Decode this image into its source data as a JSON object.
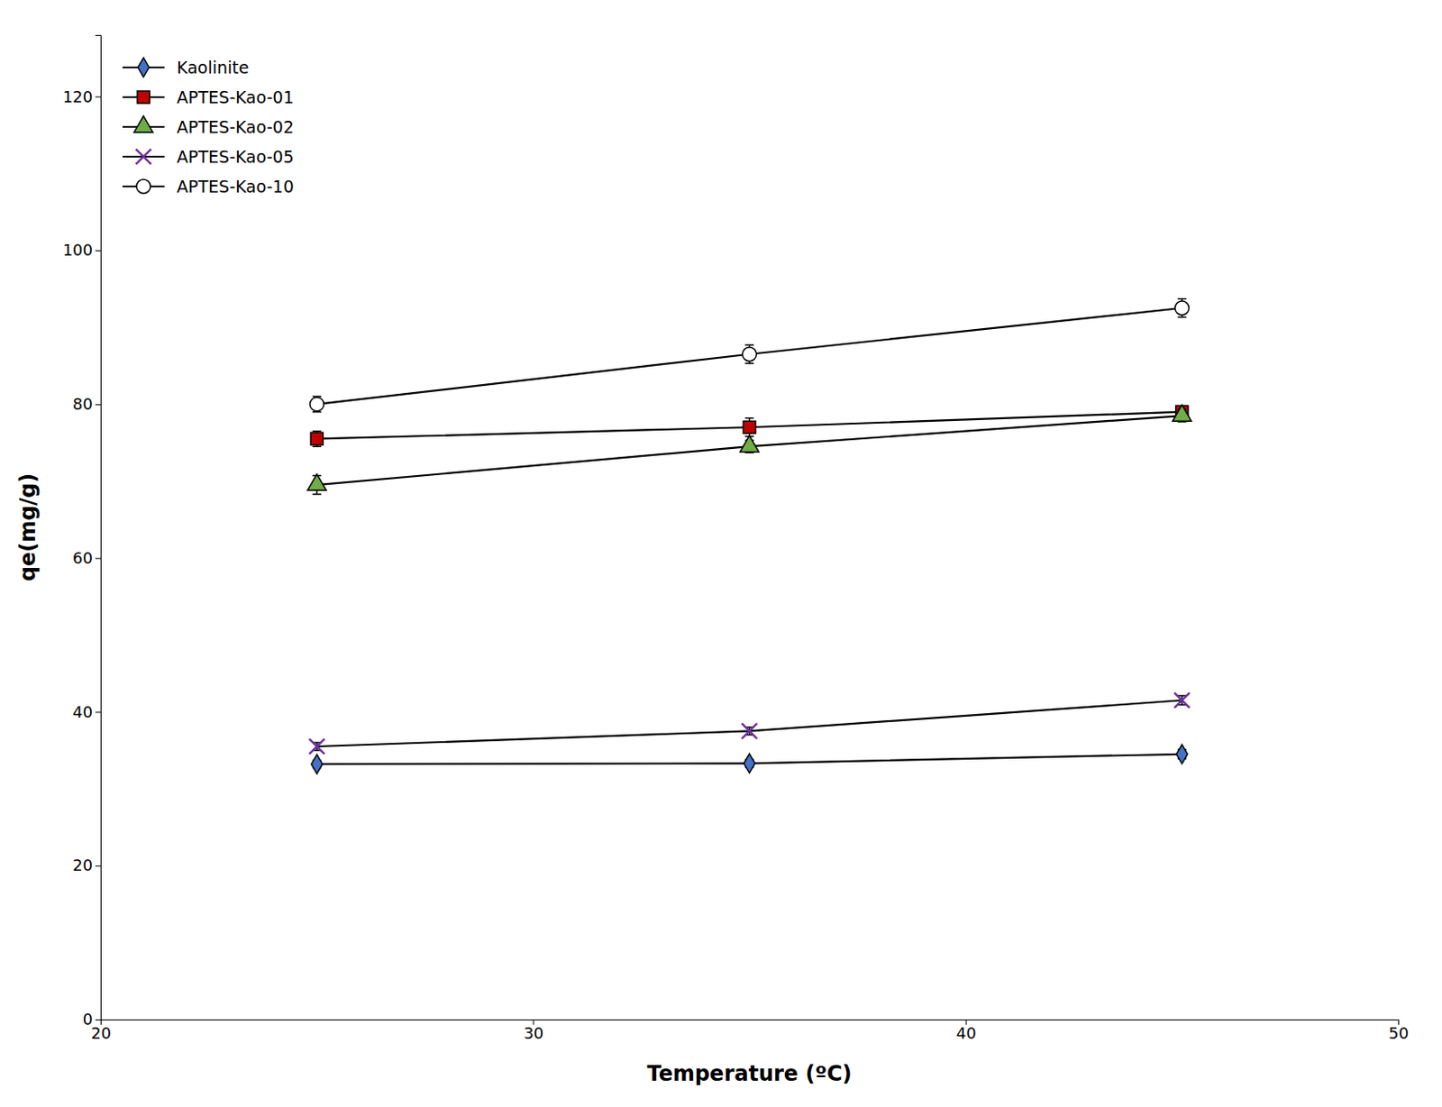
{
  "chart_data": {
    "type": "line",
    "xlabel": "Temperature (ºC)",
    "ylabel": "qe(mg/g)",
    "x": [
      25,
      35,
      45
    ],
    "series": [
      {
        "name": "Kaolinite",
        "color": "#4472C4",
        "marker": "diamond",
        "values": [
          33.2,
          33.3,
          34.5
        ],
        "errors": [
          0.5,
          0.5,
          0.6
        ]
      },
      {
        "name": "APTES-Kao-01",
        "color": "#C00000",
        "marker": "square",
        "values": [
          75.5,
          77.0,
          79.0
        ],
        "errors": [
          1.0,
          1.2,
          0.8
        ]
      },
      {
        "name": "APTES-Kao-02",
        "color": "#70AD47",
        "marker": "triangle",
        "values": [
          69.5,
          74.5,
          78.5
        ],
        "errors": [
          1.2,
          0.8,
          0.8
        ]
      },
      {
        "name": "APTES-Kao-05",
        "color": "#7030A0",
        "marker": "x",
        "values": [
          35.5,
          37.5,
          41.5
        ],
        "errors": [
          0.5,
          0.5,
          0.6
        ]
      },
      {
        "name": "APTES-Kao-10",
        "color": "#ffffff",
        "marker": "circle",
        "values": [
          80.0,
          86.5,
          92.5
        ],
        "errors": [
          1.0,
          1.2,
          1.2
        ]
      }
    ],
    "xlim": [
      20,
      50
    ],
    "ylim": [
      0,
      128
    ],
    "xticks": [
      20,
      30,
      40,
      50
    ],
    "yticks": [
      0,
      20,
      40,
      60,
      80,
      100,
      120
    ],
    "grid": false,
    "legend": "upper-left"
  }
}
